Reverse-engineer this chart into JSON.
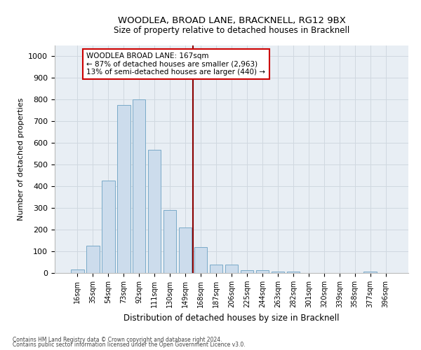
{
  "title": "WOODLEA, BROAD LANE, BRACKNELL, RG12 9BX",
  "subtitle": "Size of property relative to detached houses in Bracknell",
  "xlabel": "Distribution of detached houses by size in Bracknell",
  "ylabel": "Number of detached properties",
  "categories": [
    "16sqm",
    "35sqm",
    "54sqm",
    "73sqm",
    "92sqm",
    "111sqm",
    "130sqm",
    "149sqm",
    "168sqm",
    "187sqm",
    "206sqm",
    "225sqm",
    "244sqm",
    "263sqm",
    "282sqm",
    "301sqm",
    "320sqm",
    "339sqm",
    "358sqm",
    "377sqm",
    "396sqm"
  ],
  "values": [
    17,
    125,
    425,
    775,
    800,
    570,
    290,
    210,
    120,
    38,
    38,
    12,
    12,
    5,
    5,
    0,
    0,
    0,
    0,
    5,
    0
  ],
  "bar_color": "#ccdcec",
  "bar_edge_color": "#7aaac8",
  "grid_color": "#d0d8e0",
  "bg_color": "#e8eef4",
  "vline_color": "#8b0000",
  "annotation_text": "WOODLEA BROAD LANE: 167sqm\n← 87% of detached houses are smaller (2,963)\n13% of semi-detached houses are larger (440) →",
  "annotation_box_color": "#cc0000",
  "footnote1": "Contains HM Land Registry data © Crown copyright and database right 2024.",
  "footnote2": "Contains public sector information licensed under the Open Government Licence v3.0.",
  "ylim": [
    0,
    1050
  ],
  "yticks": [
    0,
    100,
    200,
    300,
    400,
    500,
    600,
    700,
    800,
    900,
    1000
  ]
}
